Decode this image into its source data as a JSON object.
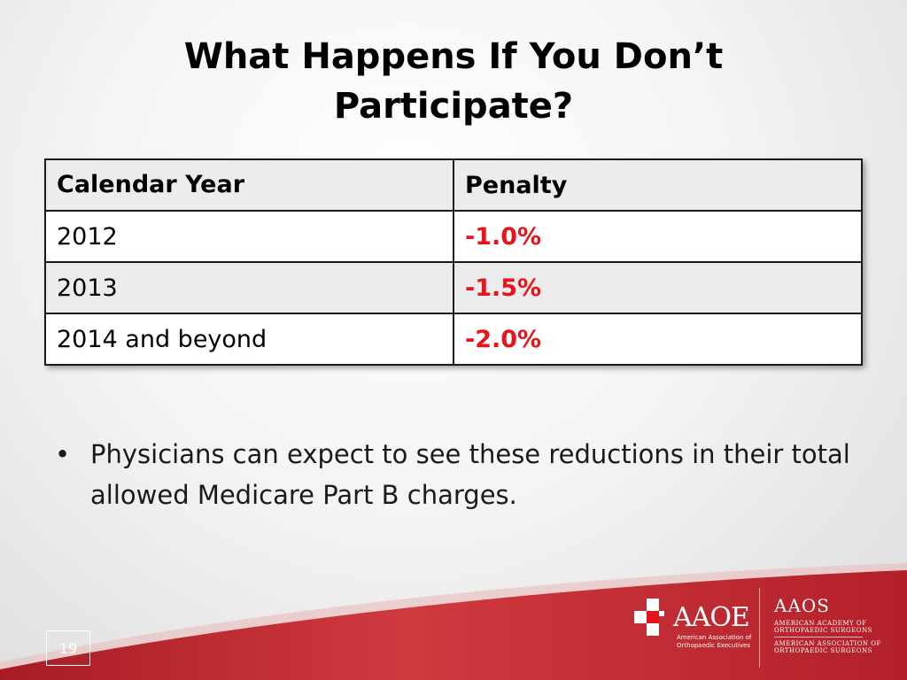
{
  "slide": {
    "title_line1": "What Happens If You Don’t",
    "title_line2": "Participate?",
    "page_number": "19"
  },
  "table": {
    "headers": [
      "Calendar Year",
      "Penalty"
    ],
    "rows": [
      {
        "year": "2012",
        "penalty": "-1.0%"
      },
      {
        "year": "2013",
        "penalty": "-1.5%"
      },
      {
        "year": "2014 and beyond",
        "penalty": "-2.0%"
      }
    ]
  },
  "bullets": [
    "Physicians can expect to see these reductions in their total allowed Medicare Part B charges."
  ],
  "logos": {
    "aaoe": {
      "name": "AAOE",
      "sub_line1": "American Association of",
      "sub_line2": "Orthopaedic Executives"
    },
    "aaos": {
      "name": "AAOS",
      "line1": "AMERICAN ACADEMY OF",
      "line2": "ORTHOPAEDIC SURGEONS",
      "line3": "AMERICAN ASSOCIATION OF",
      "line4": "ORTHOPAEDIC SURGEONS"
    }
  },
  "colors": {
    "penalty_text": "#e8141b",
    "footer_red": "#c8232d"
  }
}
